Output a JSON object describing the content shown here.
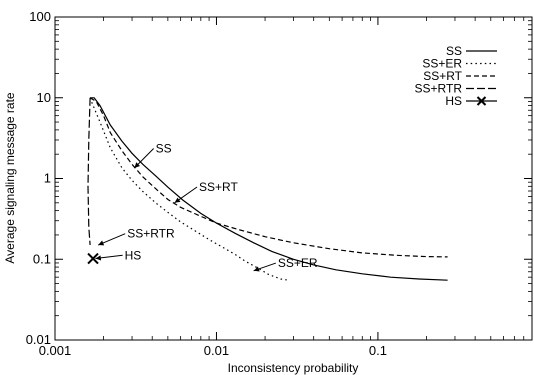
{
  "chart_data": {
    "type": "line",
    "title": "",
    "xlabel": "Inconsistency probability",
    "ylabel": "Average signaling message rate",
    "x_scale": "log",
    "y_scale": "log",
    "xlim": [
      0.001,
      0.9
    ],
    "ylim": [
      0.01,
      100
    ],
    "x_ticks": [
      {
        "value": 0.001,
        "label": "0.001"
      },
      {
        "value": 0.01,
        "label": "0.01"
      },
      {
        "value": 0.1,
        "label": "0.1"
      }
    ],
    "y_ticks": [
      {
        "value": 0.01,
        "label": "0.01"
      },
      {
        "value": 0.1,
        "label": "0.1"
      },
      {
        "value": 1,
        "label": "1"
      },
      {
        "value": 10,
        "label": "10"
      },
      {
        "value": 100,
        "label": "100"
      }
    ],
    "grid": false,
    "legend_position": "top-right",
    "series": [
      {
        "name": "SS",
        "dash": "solid",
        "points": [
          [
            0.00165,
            10
          ],
          [
            0.00175,
            10
          ],
          [
            0.0019,
            8.0
          ],
          [
            0.0022,
            4.6
          ],
          [
            0.0026,
            2.9
          ],
          [
            0.003,
            2.05
          ],
          [
            0.0035,
            1.5
          ],
          [
            0.0042,
            1.08
          ],
          [
            0.005,
            0.78
          ],
          [
            0.0062,
            0.54
          ],
          [
            0.008,
            0.37
          ],
          [
            0.01,
            0.28
          ],
          [
            0.013,
            0.21
          ],
          [
            0.017,
            0.16
          ],
          [
            0.022,
            0.125
          ],
          [
            0.03,
            0.1
          ],
          [
            0.04,
            0.085
          ],
          [
            0.055,
            0.074
          ],
          [
            0.08,
            0.066
          ],
          [
            0.12,
            0.06
          ],
          [
            0.18,
            0.057
          ],
          [
            0.27,
            0.055
          ]
        ]
      },
      {
        "name": "SS+ER",
        "dash": "dotted",
        "points": [
          [
            0.00165,
            10
          ],
          [
            0.0017,
            8.5
          ],
          [
            0.0019,
            5.0
          ],
          [
            0.0022,
            2.4
          ],
          [
            0.0026,
            1.35
          ],
          [
            0.003,
            0.95
          ],
          [
            0.0035,
            0.69
          ],
          [
            0.0042,
            0.5
          ],
          [
            0.005,
            0.38
          ],
          [
            0.006,
            0.29
          ],
          [
            0.0075,
            0.22
          ],
          [
            0.009,
            0.175
          ],
          [
            0.011,
            0.14
          ],
          [
            0.013,
            0.115
          ],
          [
            0.015,
            0.095
          ],
          [
            0.018,
            0.078
          ],
          [
            0.021,
            0.065
          ],
          [
            0.025,
            0.057
          ],
          [
            0.028,
            0.055
          ]
        ]
      },
      {
        "name": "SS+RT",
        "dash": "dashed",
        "points": [
          [
            0.00165,
            10
          ],
          [
            0.0018,
            9.0
          ],
          [
            0.002,
            6.0
          ],
          [
            0.0022,
            3.7
          ],
          [
            0.0026,
            2.2
          ],
          [
            0.003,
            1.5
          ],
          [
            0.0035,
            1.05
          ],
          [
            0.0042,
            0.75
          ],
          [
            0.005,
            0.55
          ],
          [
            0.006,
            0.44
          ],
          [
            0.008,
            0.34
          ],
          [
            0.01,
            0.28
          ],
          [
            0.014,
            0.23
          ],
          [
            0.02,
            0.19
          ],
          [
            0.03,
            0.16
          ],
          [
            0.05,
            0.135
          ],
          [
            0.08,
            0.12
          ],
          [
            0.13,
            0.112
          ],
          [
            0.2,
            0.108
          ],
          [
            0.27,
            0.107
          ]
        ]
      },
      {
        "name": "SS+RTR",
        "dash": "long-dash",
        "points": [
          [
            0.00165,
            10
          ],
          [
            0.00162,
            3.0
          ],
          [
            0.0016,
            0.8
          ],
          [
            0.00162,
            0.25
          ],
          [
            0.00165,
            0.15
          ]
        ]
      },
      {
        "name": "HS",
        "marker": "x",
        "points": [
          [
            0.00172,
            0.102
          ]
        ]
      }
    ],
    "annotations": [
      {
        "text": "SS",
        "x": 0.0042,
        "y": 2.1,
        "arrow_to": [
          0.0031,
          1.35
        ]
      },
      {
        "text": "SS+RT",
        "x": 0.0078,
        "y": 0.7,
        "arrow_to": [
          0.0055,
          0.5
        ]
      },
      {
        "text": "SS+RTR",
        "x": 0.0028,
        "y": 0.185,
        "arrow_to": [
          0.00185,
          0.15
        ]
      },
      {
        "text": "HS",
        "x": 0.0027,
        "y": 0.1,
        "arrow_to": [
          0.00178,
          0.102
        ]
      },
      {
        "text": "SS+ER",
        "x": 0.024,
        "y": 0.08,
        "arrow_to": [
          0.017,
          0.072
        ]
      }
    ]
  }
}
